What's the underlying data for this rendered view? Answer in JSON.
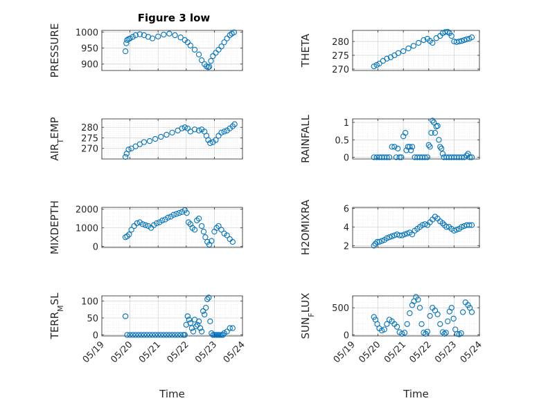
{
  "figure_title": "Figure 3 low",
  "colors": {
    "marker": "#0072BD",
    "axis": "#262626",
    "grid": "#d0d0d0"
  },
  "chart_data": [
    {
      "type": "scatter",
      "ylabel": "PRESSURE",
      "title": "Figure 3 low",
      "xlabel": "",
      "ylim": [
        880,
        1005
      ],
      "yticks": [
        900,
        950,
        1000
      ],
      "xlim": [
        0,
        5
      ],
      "x": [
        0.84,
        0.87,
        0.9,
        0.95,
        1.0,
        1.1,
        1.2,
        1.35,
        1.5,
        1.65,
        1.8,
        2.0,
        2.2,
        2.4,
        2.6,
        2.8,
        2.95,
        3.05,
        3.15,
        3.3,
        3.45,
        3.55,
        3.65,
        3.72,
        3.78,
        3.82,
        3.88,
        3.95,
        4.05,
        4.15,
        4.25,
        4.35,
        4.45,
        4.55,
        4.62,
        4.7
      ],
      "y": [
        940,
        965,
        975,
        978,
        980,
        985,
        990,
        993,
        990,
        985,
        980,
        986,
        992,
        995,
        990,
        983,
        975,
        968,
        958,
        945,
        930,
        912,
        900,
        893,
        890,
        892,
        910,
        925,
        935,
        945,
        955,
        968,
        980,
        990,
        995,
        999
      ],
      "grid": true
    },
    {
      "type": "scatter",
      "ylabel": "THETA",
      "xlabel": "",
      "ylim": [
        269.5,
        284
      ],
      "yticks": [
        270,
        275,
        280
      ],
      "xlim": [
        0,
        5
      ],
      "x": [
        0.84,
        0.95,
        1.05,
        1.2,
        1.35,
        1.5,
        1.65,
        1.8,
        2.0,
        2.2,
        2.4,
        2.6,
        2.8,
        2.95,
        3.05,
        3.15,
        3.3,
        3.45,
        3.55,
        3.65,
        3.75,
        3.82,
        3.9,
        4.0,
        4.1,
        4.2,
        4.3,
        4.4,
        4.5,
        4.6,
        4.7
      ],
      "y": [
        271,
        271.5,
        272,
        273,
        273.8,
        274.3,
        275,
        275.8,
        276.5,
        277.5,
        278.4,
        279.5,
        280.5,
        281,
        280.2,
        279.5,
        281.2,
        282,
        283,
        283.4,
        283.5,
        283,
        282,
        280,
        279.8,
        280,
        280.2,
        280.5,
        280.8,
        281,
        281.5
      ],
      "grid": true
    },
    {
      "type": "scatter",
      "ylabel": "AIR_TEMP",
      "xlabel": "",
      "ylim": [
        265,
        284
      ],
      "yticks": [
        270,
        275,
        280
      ],
      "xlim": [
        0,
        5
      ],
      "x": [
        0.84,
        0.88,
        0.95,
        1.05,
        1.2,
        1.35,
        1.5,
        1.7,
        1.9,
        2.1,
        2.3,
        2.5,
        2.7,
        2.85,
        2.95,
        3.05,
        3.15,
        3.3,
        3.45,
        3.55,
        3.65,
        3.72,
        3.78,
        3.85,
        3.95,
        4.05,
        4.15,
        4.25,
        4.35,
        4.45,
        4.55,
        4.65,
        4.72
      ],
      "y": [
        266,
        267.5,
        269.5,
        270,
        271,
        272,
        273,
        273.5,
        274.5,
        275.5,
        276.5,
        277.5,
        278.5,
        279.5,
        280,
        279.5,
        278,
        279,
        278.5,
        279,
        278,
        276,
        274,
        272.5,
        273,
        274,
        276,
        277.5,
        278,
        278.5,
        279.5,
        280.5,
        281.5
      ],
      "grid": true
    },
    {
      "type": "scatter",
      "ylabel": "RAINFALL",
      "xlabel": "",
      "ylim": [
        -0.05,
        1.1
      ],
      "yticks": [
        0,
        0.5,
        1
      ],
      "xlim": [
        0,
        5
      ],
      "x": [
        0.84,
        0.95,
        1.05,
        1.15,
        1.25,
        1.35,
        1.45,
        1.55,
        1.65,
        1.72,
        1.78,
        1.85,
        1.92,
        2.0,
        2.08,
        2.12,
        2.18,
        2.25,
        2.3,
        2.35,
        2.45,
        2.55,
        2.65,
        2.75,
        2.85,
        2.95,
        3.0,
        3.05,
        3.1,
        3.15,
        3.2,
        3.25,
        3.3,
        3.35,
        3.4,
        3.45,
        3.5,
        3.55,
        3.6,
        3.7,
        3.8,
        3.9,
        4.0,
        4.1,
        4.2,
        4.3,
        4.4,
        4.5,
        4.55,
        4.62,
        4.7
      ],
      "y": [
        0,
        0,
        0,
        0,
        0,
        0,
        0,
        0.3,
        0.3,
        0,
        0.25,
        0,
        0,
        0.6,
        0.7,
        0.2,
        0.3,
        0.3,
        0.2,
        0.3,
        0,
        0,
        0,
        0,
        0,
        0,
        0.35,
        0.3,
        0.7,
        1.05,
        1.0,
        0.7,
        0.88,
        0.9,
        0.5,
        0.3,
        0.25,
        0.1,
        0,
        0,
        0,
        0,
        0,
        0,
        0,
        0,
        0,
        0.05,
        0.1,
        0,
        0
      ],
      "grid": true
    },
    {
      "type": "scatter",
      "ylabel": "MIXDEPTH",
      "xlabel": "",
      "ylim": [
        -50,
        2100
      ],
      "yticks": [
        0,
        1000,
        2000
      ],
      "xlim": [
        0,
        5
      ],
      "x": [
        0.84,
        0.9,
        0.97,
        1.05,
        1.15,
        1.25,
        1.35,
        1.45,
        1.55,
        1.65,
        1.75,
        1.85,
        1.95,
        2.05,
        2.15,
        2.25,
        2.35,
        2.45,
        2.55,
        2.65,
        2.75,
        2.85,
        2.95,
        3.02,
        3.08,
        3.15,
        3.22,
        3.3,
        3.38,
        3.45,
        3.55,
        3.62,
        3.68,
        3.75,
        3.82,
        3.9,
        4.0,
        4.08,
        4.15,
        4.25,
        4.35,
        4.45,
        4.55,
        4.65
      ],
      "y": [
        500,
        550,
        650,
        900,
        1100,
        1250,
        1300,
        1200,
        1150,
        1100,
        1000,
        1150,
        1250,
        1300,
        1400,
        1450,
        1550,
        1600,
        1700,
        1750,
        1800,
        1850,
        1950,
        1800,
        1300,
        1200,
        1000,
        900,
        1400,
        1500,
        1100,
        800,
        500,
        250,
        100,
        300,
        800,
        1000,
        1100,
        900,
        700,
        600,
        400,
        250
      ],
      "grid": true
    },
    {
      "type": "scatter",
      "ylabel": "H2OMIXRA",
      "xlabel": "",
      "ylim": [
        1.8,
        6.1
      ],
      "yticks": [
        2,
        4,
        6
      ],
      "xlim": [
        0,
        5
      ],
      "x": [
        0.84,
        0.9,
        0.97,
        1.05,
        1.15,
        1.25,
        1.35,
        1.45,
        1.55,
        1.65,
        1.75,
        1.85,
        1.95,
        2.05,
        2.15,
        2.25,
        2.35,
        2.45,
        2.55,
        2.65,
        2.75,
        2.85,
        2.95,
        3.05,
        3.15,
        3.25,
        3.35,
        3.45,
        3.55,
        3.62,
        3.7,
        3.8,
        3.9,
        4.0,
        4.1,
        4.2,
        4.3,
        4.4,
        4.5,
        4.6,
        4.7
      ],
      "y": [
        2.0,
        2.2,
        2.4,
        2.4,
        2.5,
        2.6,
        2.8,
        2.9,
        3.0,
        3.1,
        3.2,
        3.1,
        3.1,
        3.2,
        3.3,
        3.4,
        3.2,
        3.6,
        3.8,
        4.0,
        4.2,
        4.3,
        4.2,
        4.5,
        4.8,
        5.1,
        4.9,
        4.6,
        4.4,
        4.2,
        4.0,
        4.0,
        3.8,
        3.6,
        3.7,
        3.8,
        4.0,
        4.1,
        4.2,
        4.2,
        4.2
      ],
      "grid": true
    },
    {
      "type": "scatter",
      "ylabel": "TERR_MSL",
      "xlabel": "Time",
      "ylim": [
        -3,
        115
      ],
      "yticks": [
        0,
        50,
        100
      ],
      "xlim": [
        0,
        5
      ],
      "xticklabels": [
        "05/19",
        "05/20",
        "05/21",
        "05/22",
        "05/23",
        "05/24"
      ],
      "x": [
        0.84,
        0.9,
        1.0,
        1.1,
        1.2,
        1.3,
        1.4,
        1.5,
        1.6,
        1.7,
        1.8,
        1.9,
        2.0,
        2.1,
        2.2,
        2.3,
        2.4,
        2.5,
        2.6,
        2.7,
        2.8,
        2.9,
        2.95,
        3.0,
        3.05,
        3.1,
        3.15,
        3.2,
        3.25,
        3.3,
        3.35,
        3.4,
        3.45,
        3.5,
        3.55,
        3.6,
        3.65,
        3.7,
        3.75,
        3.8,
        3.85,
        3.9,
        3.95,
        4.0,
        4.05,
        4.1,
        4.15,
        4.2,
        4.25,
        4.3,
        4.35,
        4.45,
        4.55,
        4.65
      ],
      "y": [
        55,
        0,
        0,
        0,
        0,
        0,
        0,
        0,
        0,
        0,
        0,
        0,
        0,
        0,
        0,
        0,
        0,
        0,
        0,
        0,
        0,
        0,
        0,
        30,
        55,
        45,
        35,
        20,
        10,
        45,
        25,
        30,
        40,
        20,
        10,
        70,
        60,
        80,
        105,
        110,
        40,
        5,
        0,
        0,
        0,
        0,
        0,
        0,
        0,
        0,
        5,
        10,
        20,
        20
      ],
      "grid": true
    },
    {
      "type": "scatter",
      "ylabel": "SUN_FLUX",
      "xlabel": "Time",
      "ylim": [
        -20,
        720
      ],
      "yticks": [
        0,
        500
      ],
      "xlim": [
        0,
        5
      ],
      "xticklabels": [
        "05/19",
        "05/20",
        "05/21",
        "05/22",
        "05/23",
        "05/24"
      ],
      "x": [
        0.84,
        0.9,
        0.97,
        1.05,
        1.15,
        1.25,
        1.35,
        1.45,
        1.55,
        1.65,
        1.75,
        1.85,
        1.95,
        2.05,
        2.15,
        2.25,
        2.35,
        2.42,
        2.5,
        2.58,
        2.65,
        2.72,
        2.8,
        2.88,
        2.95,
        3.05,
        3.15,
        3.25,
        3.35,
        3.45,
        3.55,
        3.62,
        3.68,
        3.75,
        3.82,
        3.9,
        3.98,
        4.05,
        4.12,
        4.2,
        4.28,
        4.35,
        4.45,
        4.55,
        4.62,
        4.7
      ],
      "y": [
        330,
        280,
        200,
        120,
        80,
        100,
        200,
        280,
        250,
        200,
        150,
        50,
        20,
        40,
        200,
        400,
        550,
        620,
        700,
        650,
        500,
        200,
        40,
        20,
        60,
        350,
        500,
        450,
        380,
        200,
        50,
        20,
        40,
        250,
        430,
        500,
        300,
        100,
        20,
        10,
        30,
        420,
        600,
        550,
        500,
        420
      ],
      "grid": true
    }
  ]
}
